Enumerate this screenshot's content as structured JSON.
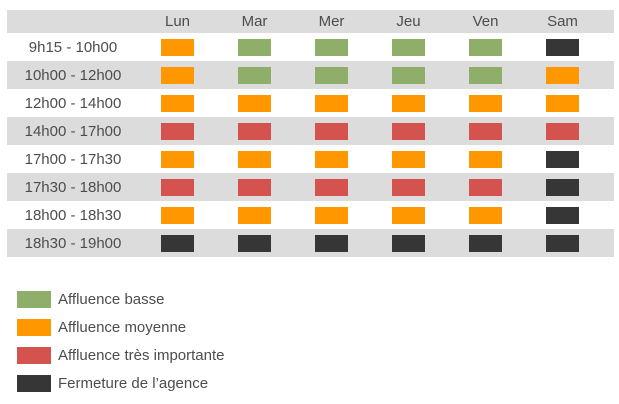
{
  "colors": {
    "low": "#8fae6a",
    "medium": "#ff9800",
    "high": "#d5534f",
    "closed": "#363636",
    "row_stripe": "#dcdcdc",
    "text": "#4d4d4d"
  },
  "chart_data": {
    "type": "heatmap",
    "columns": [
      "Lun",
      "Mar",
      "Mer",
      "Jeu",
      "Ven",
      "Sam"
    ],
    "rows": [
      "9h15 - 10h00",
      "10h00 - 12h00",
      "12h00 - 14h00",
      "14h00 - 17h00",
      "17h00 - 17h30",
      "17h30 - 18h00",
      "18h00 - 18h30",
      "18h30 - 19h00"
    ],
    "values": [
      [
        "medium",
        "low",
        "low",
        "low",
        "low",
        "closed"
      ],
      [
        "medium",
        "low",
        "low",
        "low",
        "low",
        "medium"
      ],
      [
        "medium",
        "medium",
        "medium",
        "medium",
        "medium",
        "medium"
      ],
      [
        "high",
        "high",
        "high",
        "high",
        "high",
        "high"
      ],
      [
        "medium",
        "medium",
        "medium",
        "medium",
        "medium",
        "closed"
      ],
      [
        "high",
        "high",
        "high",
        "high",
        "high",
        "closed"
      ],
      [
        "medium",
        "medium",
        "medium",
        "medium",
        "medium",
        "closed"
      ],
      [
        "closed",
        "closed",
        "closed",
        "closed",
        "closed",
        "closed"
      ]
    ],
    "legend": [
      {
        "level": "low",
        "label": "Affluence basse"
      },
      {
        "level": "medium",
        "label": "Affluence moyenne"
      },
      {
        "level": "high",
        "label": "Affluence très importante"
      },
      {
        "level": "closed",
        "label": "Fermeture de l’agence"
      }
    ],
    "legend_position": "bottom-left",
    "grid": false
  }
}
